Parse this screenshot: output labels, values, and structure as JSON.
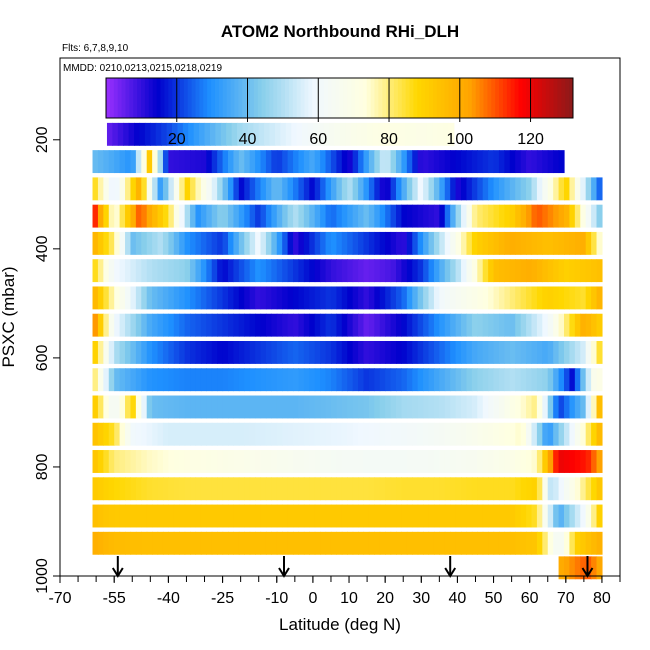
{
  "chart_data": {
    "type": "heatmap",
    "title": "ATOM2 Northbound RHi_DLH",
    "subtitle": "Flts: 6,7,8,9,10",
    "annotation": "MMDD: 0210,0213,0215,0218,0219",
    "xlabel": "Latitude (deg N)",
    "ylabel": "PSXC (mbar)",
    "xlim": [
      -70,
      85
    ],
    "ylim": [
      1000,
      50
    ],
    "y_inverted": true,
    "x_ticks": [
      -70,
      -55,
      -40,
      -25,
      -10,
      0,
      10,
      20,
      30,
      40,
      50,
      60,
      70,
      80
    ],
    "x_tick_labels": [
      "-70",
      "-55",
      "-40",
      "-25",
      "-10",
      "0",
      "10",
      "20",
      "30",
      "40",
      "50",
      "60",
      "70",
      "80"
    ],
    "y_ticks": [
      200,
      400,
      600,
      800,
      1000
    ],
    "y_tick_labels": [
      "200",
      "400",
      "600",
      "800",
      "1000"
    ],
    "colorbar": {
      "range": [
        0,
        132
      ],
      "ticks": [
        20,
        40,
        60,
        80,
        100,
        120
      ],
      "tick_labels": [
        "20",
        "40",
        "60",
        "80",
        "100",
        "120"
      ],
      "placement": "top inside plot",
      "colors": [
        "#9b30ff",
        "#0000cd",
        "#1e90ff",
        "#87ceeb",
        "#f0f8ff",
        "#ffffe0",
        "#ffd700",
        "#ffa500",
        "#ff0000",
        "#8b1a1a"
      ]
    },
    "arrows_at_latitude": [
      -54,
      -8,
      38,
      76
    ],
    "pressure_levels": [
      {
        "p": 190,
        "lat_range": [
          -57,
          38
        ],
        "profile": [
          [
            -57,
            5
          ],
          [
            -48,
            15
          ],
          [
            -40,
            22
          ],
          [
            -30,
            35
          ],
          [
            -20,
            48
          ],
          [
            -10,
            55
          ],
          [
            0,
            62
          ],
          [
            10,
            68
          ],
          [
            20,
            72
          ],
          [
            30,
            70
          ],
          [
            38,
            72
          ]
        ]
      },
      {
        "p": 240,
        "lat_range": [
          -61,
          69
        ],
        "profile": [
          [
            -61,
            40
          ],
          [
            -55,
            35
          ],
          [
            -50,
            30
          ],
          [
            -45,
            95
          ],
          [
            -40,
            10
          ],
          [
            -30,
            12
          ],
          [
            -20,
            40
          ],
          [
            -10,
            20
          ],
          [
            0,
            35
          ],
          [
            10,
            12
          ],
          [
            20,
            55
          ],
          [
            30,
            10
          ],
          [
            40,
            15
          ],
          [
            50,
            20
          ],
          [
            60,
            10
          ],
          [
            69,
            15
          ]
        ]
      },
      {
        "p": 290,
        "lat_range": [
          -61,
          80
        ],
        "profile": [
          [
            -61,
            90
          ],
          [
            -55,
            55
          ],
          [
            -48,
            100
          ],
          [
            -42,
            30
          ],
          [
            -35,
            90
          ],
          [
            -28,
            60
          ],
          [
            -20,
            15
          ],
          [
            -10,
            40
          ],
          [
            0,
            15
          ],
          [
            10,
            50
          ],
          [
            20,
            10
          ],
          [
            30,
            60
          ],
          [
            40,
            12
          ],
          [
            50,
            30
          ],
          [
            60,
            45
          ],
          [
            70,
            90
          ],
          [
            80,
            20
          ]
        ]
      },
      {
        "p": 340,
        "lat_range": [
          -61,
          80
        ],
        "profile": [
          [
            -61,
            120
          ],
          [
            -55,
            70
          ],
          [
            -48,
            110
          ],
          [
            -40,
            85
          ],
          [
            -32,
            30
          ],
          [
            -25,
            45
          ],
          [
            -15,
            20
          ],
          [
            -5,
            50
          ],
          [
            5,
            25
          ],
          [
            15,
            40
          ],
          [
            25,
            15
          ],
          [
            35,
            10
          ],
          [
            45,
            80
          ],
          [
            55,
            90
          ],
          [
            62,
            110
          ],
          [
            70,
            100
          ],
          [
            80,
            40
          ]
        ]
      },
      {
        "p": 390,
        "lat_range": [
          -61,
          80
        ],
        "profile": [
          [
            -61,
            100
          ],
          [
            -55,
            80
          ],
          [
            -50,
            40
          ],
          [
            -42,
            50
          ],
          [
            -35,
            30
          ],
          [
            -25,
            20
          ],
          [
            -15,
            60
          ],
          [
            -5,
            10
          ],
          [
            5,
            30
          ],
          [
            15,
            20
          ],
          [
            25,
            10
          ],
          [
            35,
            50
          ],
          [
            45,
            90
          ],
          [
            55,
            100
          ],
          [
            65,
            95
          ],
          [
            75,
            100
          ],
          [
            80,
            70
          ]
        ]
      },
      {
        "p": 440,
        "lat_range": [
          -61,
          80
        ],
        "profile": [
          [
            -61,
            90
          ],
          [
            -55,
            60
          ],
          [
            -45,
            50
          ],
          [
            -35,
            45
          ],
          [
            -25,
            15
          ],
          [
            -15,
            30
          ],
          [
            -5,
            20
          ],
          [
            5,
            10
          ],
          [
            15,
            5
          ],
          [
            22,
            8
          ],
          [
            30,
            20
          ],
          [
            40,
            50
          ],
          [
            50,
            95
          ],
          [
            60,
            100
          ],
          [
            70,
            90
          ],
          [
            80,
            95
          ]
        ]
      },
      {
        "p": 490,
        "lat_range": [
          -61,
          80
        ],
        "profile": [
          [
            -61,
            100
          ],
          [
            -55,
            75
          ],
          [
            -45,
            40
          ],
          [
            -35,
            30
          ],
          [
            -25,
            20
          ],
          [
            -15,
            10
          ],
          [
            -5,
            15
          ],
          [
            5,
            20
          ],
          [
            15,
            10
          ],
          [
            25,
            25
          ],
          [
            35,
            60
          ],
          [
            45,
            70
          ],
          [
            55,
            80
          ],
          [
            65,
            90
          ],
          [
            75,
            85
          ],
          [
            80,
            100
          ]
        ]
      },
      {
        "p": 540,
        "lat_range": [
          -61,
          80
        ],
        "profile": [
          [
            -61,
            110
          ],
          [
            -55,
            60
          ],
          [
            -45,
            35
          ],
          [
            -35,
            25
          ],
          [
            -25,
            20
          ],
          [
            -15,
            15
          ],
          [
            -5,
            10
          ],
          [
            5,
            20
          ],
          [
            15,
            5
          ],
          [
            25,
            15
          ],
          [
            35,
            30
          ],
          [
            45,
            45
          ],
          [
            55,
            40
          ],
          [
            65,
            60
          ],
          [
            75,
            100
          ],
          [
            80,
            90
          ]
        ]
      },
      {
        "p": 590,
        "lat_range": [
          -61,
          80
        ],
        "profile": [
          [
            -61,
            95
          ],
          [
            -55,
            50
          ],
          [
            -45,
            30
          ],
          [
            -35,
            20
          ],
          [
            -25,
            15
          ],
          [
            -15,
            20
          ],
          [
            -5,
            25
          ],
          [
            5,
            20
          ],
          [
            15,
            10
          ],
          [
            25,
            15
          ],
          [
            35,
            25
          ],
          [
            45,
            35
          ],
          [
            55,
            40
          ],
          [
            65,
            35
          ],
          [
            75,
            55
          ],
          [
            80,
            90
          ]
        ]
      },
      {
        "p": 640,
        "lat_range": [
          -61,
          80
        ],
        "profile": [
          [
            -61,
            85
          ],
          [
            -55,
            40
          ],
          [
            -45,
            30
          ],
          [
            -35,
            28
          ],
          [
            -25,
            28
          ],
          [
            -15,
            30
          ],
          [
            -5,
            32
          ],
          [
            5,
            28
          ],
          [
            15,
            20
          ],
          [
            25,
            25
          ],
          [
            35,
            35
          ],
          [
            45,
            45
          ],
          [
            55,
            50
          ],
          [
            65,
            45
          ],
          [
            72,
            15
          ],
          [
            78,
            70
          ]
        ]
      },
      {
        "p": 690,
        "lat_range": [
          -61,
          80
        ],
        "profile": [
          [
            -61,
            95
          ],
          [
            -55,
            60
          ],
          [
            -50,
            90
          ],
          [
            -45,
            40
          ],
          [
            -35,
            38
          ],
          [
            -25,
            38
          ],
          [
            -15,
            38
          ],
          [
            -5,
            38
          ],
          [
            5,
            40
          ],
          [
            15,
            42
          ],
          [
            25,
            48
          ],
          [
            35,
            50
          ],
          [
            45,
            55
          ],
          [
            55,
            70
          ],
          [
            62,
            80
          ],
          [
            68,
            20
          ],
          [
            75,
            40
          ],
          [
            80,
            105
          ]
        ]
      },
      {
        "p": 740,
        "lat_range": [
          -61,
          80
        ],
        "profile": [
          [
            -61,
            95
          ],
          [
            -55,
            85
          ],
          [
            -50,
            60
          ],
          [
            -40,
            55
          ],
          [
            -30,
            55
          ],
          [
            -20,
            55
          ],
          [
            -10,
            56
          ],
          [
            0,
            57
          ],
          [
            10,
            58
          ],
          [
            20,
            60
          ],
          [
            30,
            62
          ],
          [
            40,
            65
          ],
          [
            50,
            70
          ],
          [
            58,
            75
          ],
          [
            65,
            30
          ],
          [
            72,
            60
          ],
          [
            80,
            100
          ]
        ]
      },
      {
        "p": 790,
        "lat_range": [
          -61,
          80
        ],
        "profile": [
          [
            -61,
            95
          ],
          [
            -55,
            80
          ],
          [
            -45,
            75
          ],
          [
            -35,
            72
          ],
          [
            -25,
            70
          ],
          [
            -15,
            68
          ],
          [
            -5,
            66
          ],
          [
            5,
            64
          ],
          [
            15,
            63
          ],
          [
            25,
            63
          ],
          [
            35,
            64
          ],
          [
            45,
            66
          ],
          [
            55,
            70
          ],
          [
            62,
            75
          ],
          [
            68,
            120
          ],
          [
            76,
            115
          ],
          [
            80,
            100
          ]
        ]
      },
      {
        "p": 840,
        "lat_range": [
          -61,
          80
        ],
        "profile": [
          [
            -61,
            92
          ],
          [
            -55,
            88
          ],
          [
            -45,
            85
          ],
          [
            -35,
            84
          ],
          [
            -25,
            84
          ],
          [
            -15,
            84
          ],
          [
            -5,
            84
          ],
          [
            5,
            84
          ],
          [
            15,
            84
          ],
          [
            25,
            85
          ],
          [
            35,
            85
          ],
          [
            45,
            86
          ],
          [
            55,
            86
          ],
          [
            62,
            90
          ],
          [
            66,
            50
          ],
          [
            72,
            70
          ],
          [
            80,
            95
          ]
        ]
      },
      {
        "p": 890,
        "lat_range": [
          -61,
          80
        ],
        "profile": [
          [
            -61,
            95
          ],
          [
            -55,
            92
          ],
          [
            -45,
            92
          ],
          [
            -35,
            92
          ],
          [
            -25,
            92
          ],
          [
            -15,
            92
          ],
          [
            -5,
            92
          ],
          [
            5,
            92
          ],
          [
            15,
            92
          ],
          [
            25,
            92
          ],
          [
            35,
            92
          ],
          [
            45,
            92
          ],
          [
            55,
            92
          ],
          [
            62,
            85
          ],
          [
            68,
            35
          ],
          [
            75,
            60
          ],
          [
            80,
            95
          ]
        ]
      },
      {
        "p": 940,
        "lat_range": [
          -61,
          80
        ],
        "profile": [
          [
            -61,
            100
          ],
          [
            -55,
            96
          ],
          [
            -45,
            95
          ],
          [
            -35,
            95
          ],
          [
            -25,
            95
          ],
          [
            -15,
            95
          ],
          [
            -5,
            95
          ],
          [
            5,
            95
          ],
          [
            15,
            95
          ],
          [
            25,
            95
          ],
          [
            35,
            95
          ],
          [
            45,
            95
          ],
          [
            55,
            95
          ],
          [
            62,
            93
          ],
          [
            68,
            60
          ],
          [
            73,
            90
          ],
          [
            80,
            100
          ]
        ]
      },
      {
        "p": 985,
        "lat_range": [
          68,
          80
        ],
        "profile": [
          [
            68,
            100
          ],
          [
            72,
            105
          ],
          [
            76,
            110
          ],
          [
            80,
            100
          ]
        ]
      }
    ]
  }
}
